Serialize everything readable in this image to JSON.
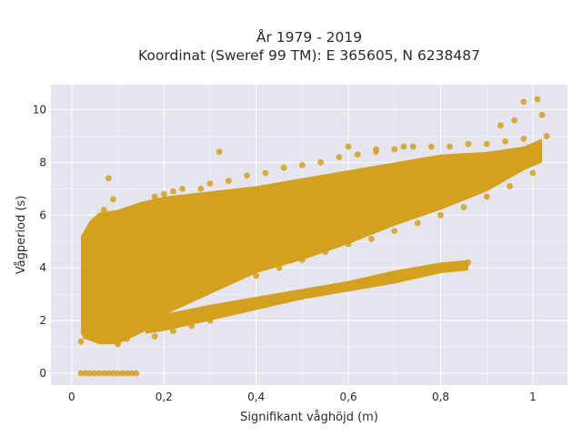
{
  "chart_data": {
    "type": "scatter",
    "title_line1": "År 1979 - 2019",
    "title_line2": "Koordinat (Sweref 99 TM): E 365605, N 6238487",
    "xlabel": "Signifikant våghöjd (m)",
    "ylabel": "Vågperiod (s)",
    "xlim": [
      -0.045,
      1.075
    ],
    "ylim": [
      -0.45,
      10.95
    ],
    "xticks": [
      0,
      0.2,
      0.4,
      0.6,
      0.8,
      1
    ],
    "xtick_labels": [
      "0",
      "0,2",
      "0,4",
      "0,6",
      "0,8",
      "1"
    ],
    "yticks": [
      0,
      2,
      4,
      6,
      8,
      10
    ],
    "ytick_labels": [
      "0",
      "2",
      "4",
      "6",
      "8",
      "10"
    ],
    "grid": true,
    "legend": "none",
    "colors": {
      "marker": "#D4A020",
      "plot_background": "#E5E5EE",
      "grid": "#ffffff",
      "page_background": "#ffffff"
    },
    "series": [
      {
        "points": [
          [
            0.02,
            0
          ],
          [
            0.03,
            0
          ],
          [
            0.04,
            0
          ],
          [
            0.05,
            0
          ],
          [
            0.06,
            0
          ],
          [
            0.07,
            0
          ],
          [
            0.08,
            0
          ],
          [
            0.09,
            0
          ],
          [
            0.1,
            0
          ],
          [
            0.11,
            0
          ],
          [
            0.12,
            0
          ],
          [
            0.13,
            0
          ],
          [
            0.14,
            0
          ],
          [
            0.02,
            1.2
          ],
          [
            0.03,
            1.4
          ],
          [
            0.04,
            1.9
          ],
          [
            0.05,
            2.3
          ],
          [
            0.06,
            3.0
          ],
          [
            0.07,
            3.5
          ],
          [
            0.05,
            5.2
          ],
          [
            0.06,
            5.5
          ],
          [
            0.07,
            6.2
          ],
          [
            0.08,
            7.4
          ],
          [
            0.09,
            6.6
          ],
          [
            0.1,
            5.9
          ],
          [
            0.1,
            1.1
          ],
          [
            0.12,
            1.3
          ],
          [
            0.14,
            2.0
          ],
          [
            0.15,
            6.3
          ],
          [
            0.16,
            5.7
          ],
          [
            0.18,
            6.7
          ],
          [
            0.2,
            6.8
          ],
          [
            0.22,
            6.9
          ],
          [
            0.24,
            7.0
          ],
          [
            0.28,
            7.0
          ],
          [
            0.18,
            1.4
          ],
          [
            0.22,
            1.6
          ],
          [
            0.26,
            1.8
          ],
          [
            0.3,
            2.0
          ],
          [
            0.34,
            2.3
          ],
          [
            0.38,
            2.5
          ],
          [
            0.42,
            2.6
          ],
          [
            0.46,
            2.8
          ],
          [
            0.5,
            2.9
          ],
          [
            0.54,
            3.1
          ],
          [
            0.58,
            3.2
          ],
          [
            0.62,
            3.4
          ],
          [
            0.66,
            3.5
          ],
          [
            0.7,
            3.7
          ],
          [
            0.74,
            3.8
          ],
          [
            0.78,
            4.0
          ],
          [
            0.82,
            4.1
          ],
          [
            0.86,
            4.2
          ],
          [
            0.3,
            7.2
          ],
          [
            0.34,
            7.3
          ],
          [
            0.38,
            7.5
          ],
          [
            0.42,
            7.6
          ],
          [
            0.46,
            7.8
          ],
          [
            0.5,
            7.9
          ],
          [
            0.54,
            8.0
          ],
          [
            0.58,
            8.2
          ],
          [
            0.62,
            8.3
          ],
          [
            0.66,
            8.4
          ],
          [
            0.7,
            8.5
          ],
          [
            0.74,
            8.6
          ],
          [
            0.78,
            8.6
          ],
          [
            0.82,
            8.6
          ],
          [
            0.86,
            8.7
          ],
          [
            0.9,
            8.7
          ],
          [
            0.94,
            8.8
          ],
          [
            0.98,
            8.9
          ],
          [
            0.32,
            8.4
          ],
          [
            0.6,
            8.6
          ],
          [
            0.66,
            8.5
          ],
          [
            0.72,
            8.6
          ],
          [
            0.84,
            8.1
          ],
          [
            0.89,
            8.0
          ],
          [
            0.93,
            9.4
          ],
          [
            0.96,
            9.6
          ],
          [
            0.98,
            10.3
          ],
          [
            1.01,
            10.4
          ],
          [
            1.02,
            9.8
          ],
          [
            1.03,
            9.0
          ],
          [
            1.0,
            8.5
          ],
          [
            0.4,
            3.7
          ],
          [
            0.45,
            4.0
          ],
          [
            0.5,
            4.3
          ],
          [
            0.55,
            4.6
          ],
          [
            0.6,
            4.9
          ],
          [
            0.65,
            5.1
          ],
          [
            0.7,
            5.4
          ],
          [
            0.75,
            5.7
          ],
          [
            0.8,
            6.0
          ],
          [
            0.85,
            6.3
          ],
          [
            0.9,
            6.7
          ],
          [
            0.95,
            7.1
          ],
          [
            1.0,
            7.6
          ]
        ]
      }
    ]
  }
}
